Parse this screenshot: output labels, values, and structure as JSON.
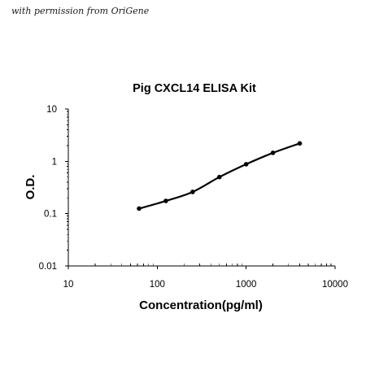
{
  "watermark": "with permission from OriGene",
  "chart_data": {
    "type": "scatter",
    "title": "Pig CXCL14 ELISA Kit",
    "xlabel": "Concentration(pg/ml)",
    "ylabel": "O.D.",
    "xscale": "log",
    "yscale": "log",
    "xlim": [
      10,
      10000
    ],
    "ylim": [
      0.01,
      10
    ],
    "x_tick_labels": [
      "10",
      "100",
      "1000",
      "10000"
    ],
    "y_tick_labels": [
      "0.01",
      "0.1",
      "1",
      "10"
    ],
    "grid": false,
    "series": [
      {
        "x": [
          62.5,
          125,
          250,
          500,
          1000,
          2000,
          4000
        ],
        "y": [
          0.125,
          0.175,
          0.26,
          0.5,
          0.88,
          1.45,
          2.2
        ],
        "style": "points with smooth fitted curve"
      }
    ]
  }
}
